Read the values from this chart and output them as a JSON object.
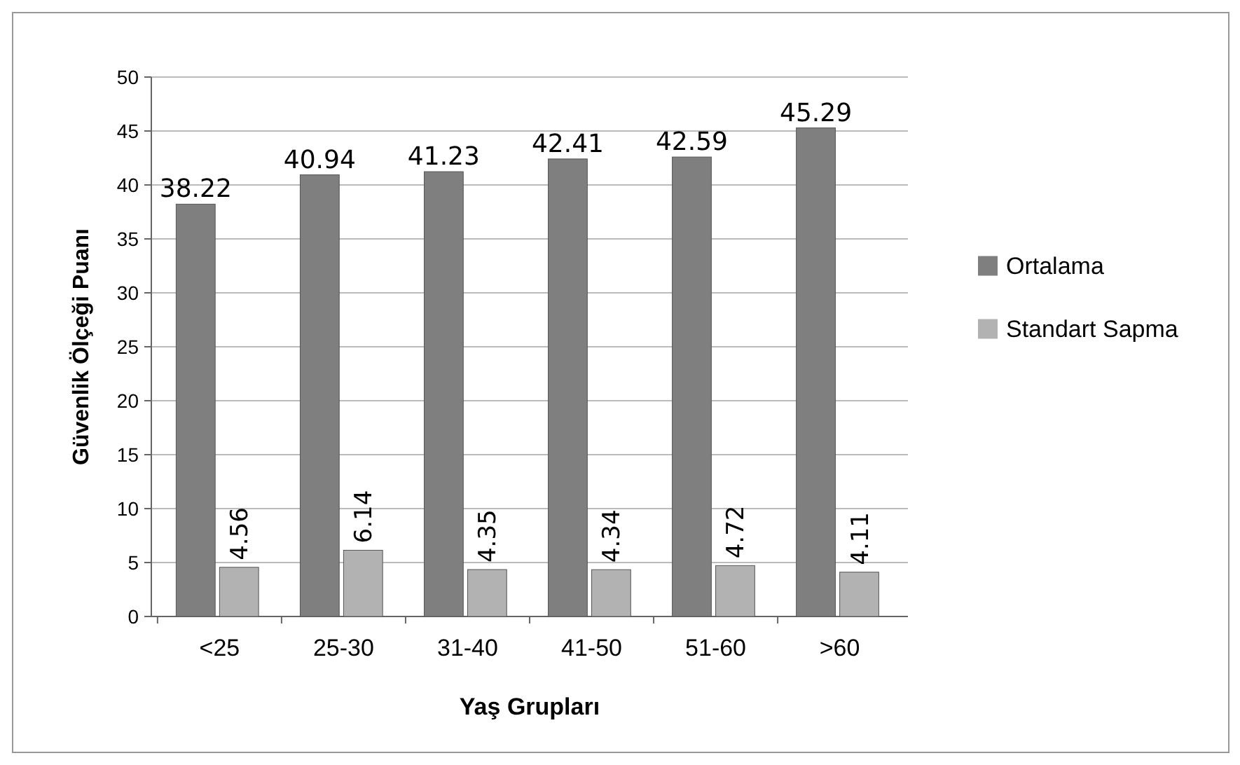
{
  "chart_data": {
    "type": "bar",
    "xlabel": "Yaş Grupları",
    "ylabel": "Güvenlik Ölçeği Puanı",
    "categories": [
      "<25",
      "25-30",
      "31-40",
      "41-50",
      "51-60",
      ">60"
    ],
    "series": [
      {
        "name": "Ortalama",
        "color": "#7f7f7f",
        "values": [
          38.22,
          40.94,
          41.23,
          42.41,
          42.59,
          45.29
        ]
      },
      {
        "name": "Standart Sapma",
        "color": "#b2b2b2",
        "values": [
          4.56,
          6.14,
          4.35,
          4.34,
          4.72,
          4.11
        ]
      }
    ],
    "ylim": [
      0,
      50
    ],
    "yticks": [
      0,
      5,
      10,
      15,
      20,
      25,
      30,
      35,
      40,
      45,
      50
    ],
    "grid": "y",
    "legend": "right",
    "data_labels": true
  }
}
